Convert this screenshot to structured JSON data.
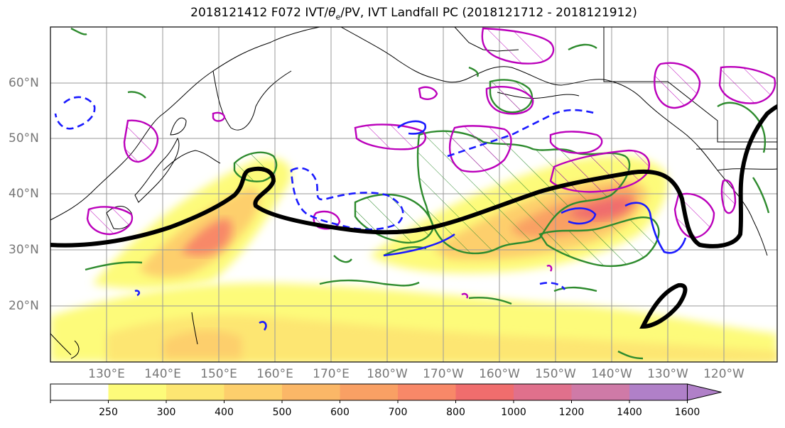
{
  "title": "2018121412 F072 IVT/θe/PV, IVT Landfall PC (2018121712 - 2018121912)",
  "title_parts": {
    "prefix": "2018121412 F072 IVT/",
    "theta": "θ",
    "sub": "e",
    "suffix": "/PV, IVT Landfall PC (2018121712 - 2018121912)"
  },
  "map": {
    "lat_labels": [
      "60°N",
      "50°N",
      "40°N",
      "30°N",
      "20°N"
    ],
    "lon_labels": [
      "130°E",
      "140°E",
      "150°E",
      "160°E",
      "170°E",
      "180°W",
      "170°W",
      "160°W",
      "150°W",
      "140°W",
      "130°W",
      "120°W"
    ],
    "contour_colors": {
      "ivt_landfall_pc": "#000000",
      "theta_e": "#2e8b2e",
      "pv": "#bb00bb",
      "negative_contour": "#1a1aff"
    }
  },
  "colorbar": {
    "levels": [
      "250",
      "300",
      "400",
      "500",
      "600",
      "700",
      "800",
      "1000",
      "1200",
      "1400",
      "1600"
    ],
    "colors": [
      "#ffffff",
      "#fdfb7a",
      "#fde672",
      "#fdcf6c",
      "#fbb767",
      "#f9a064",
      "#f88868",
      "#f06d6d",
      "#e0708c",
      "#cf7aa7",
      "#b080c8"
    ]
  }
}
